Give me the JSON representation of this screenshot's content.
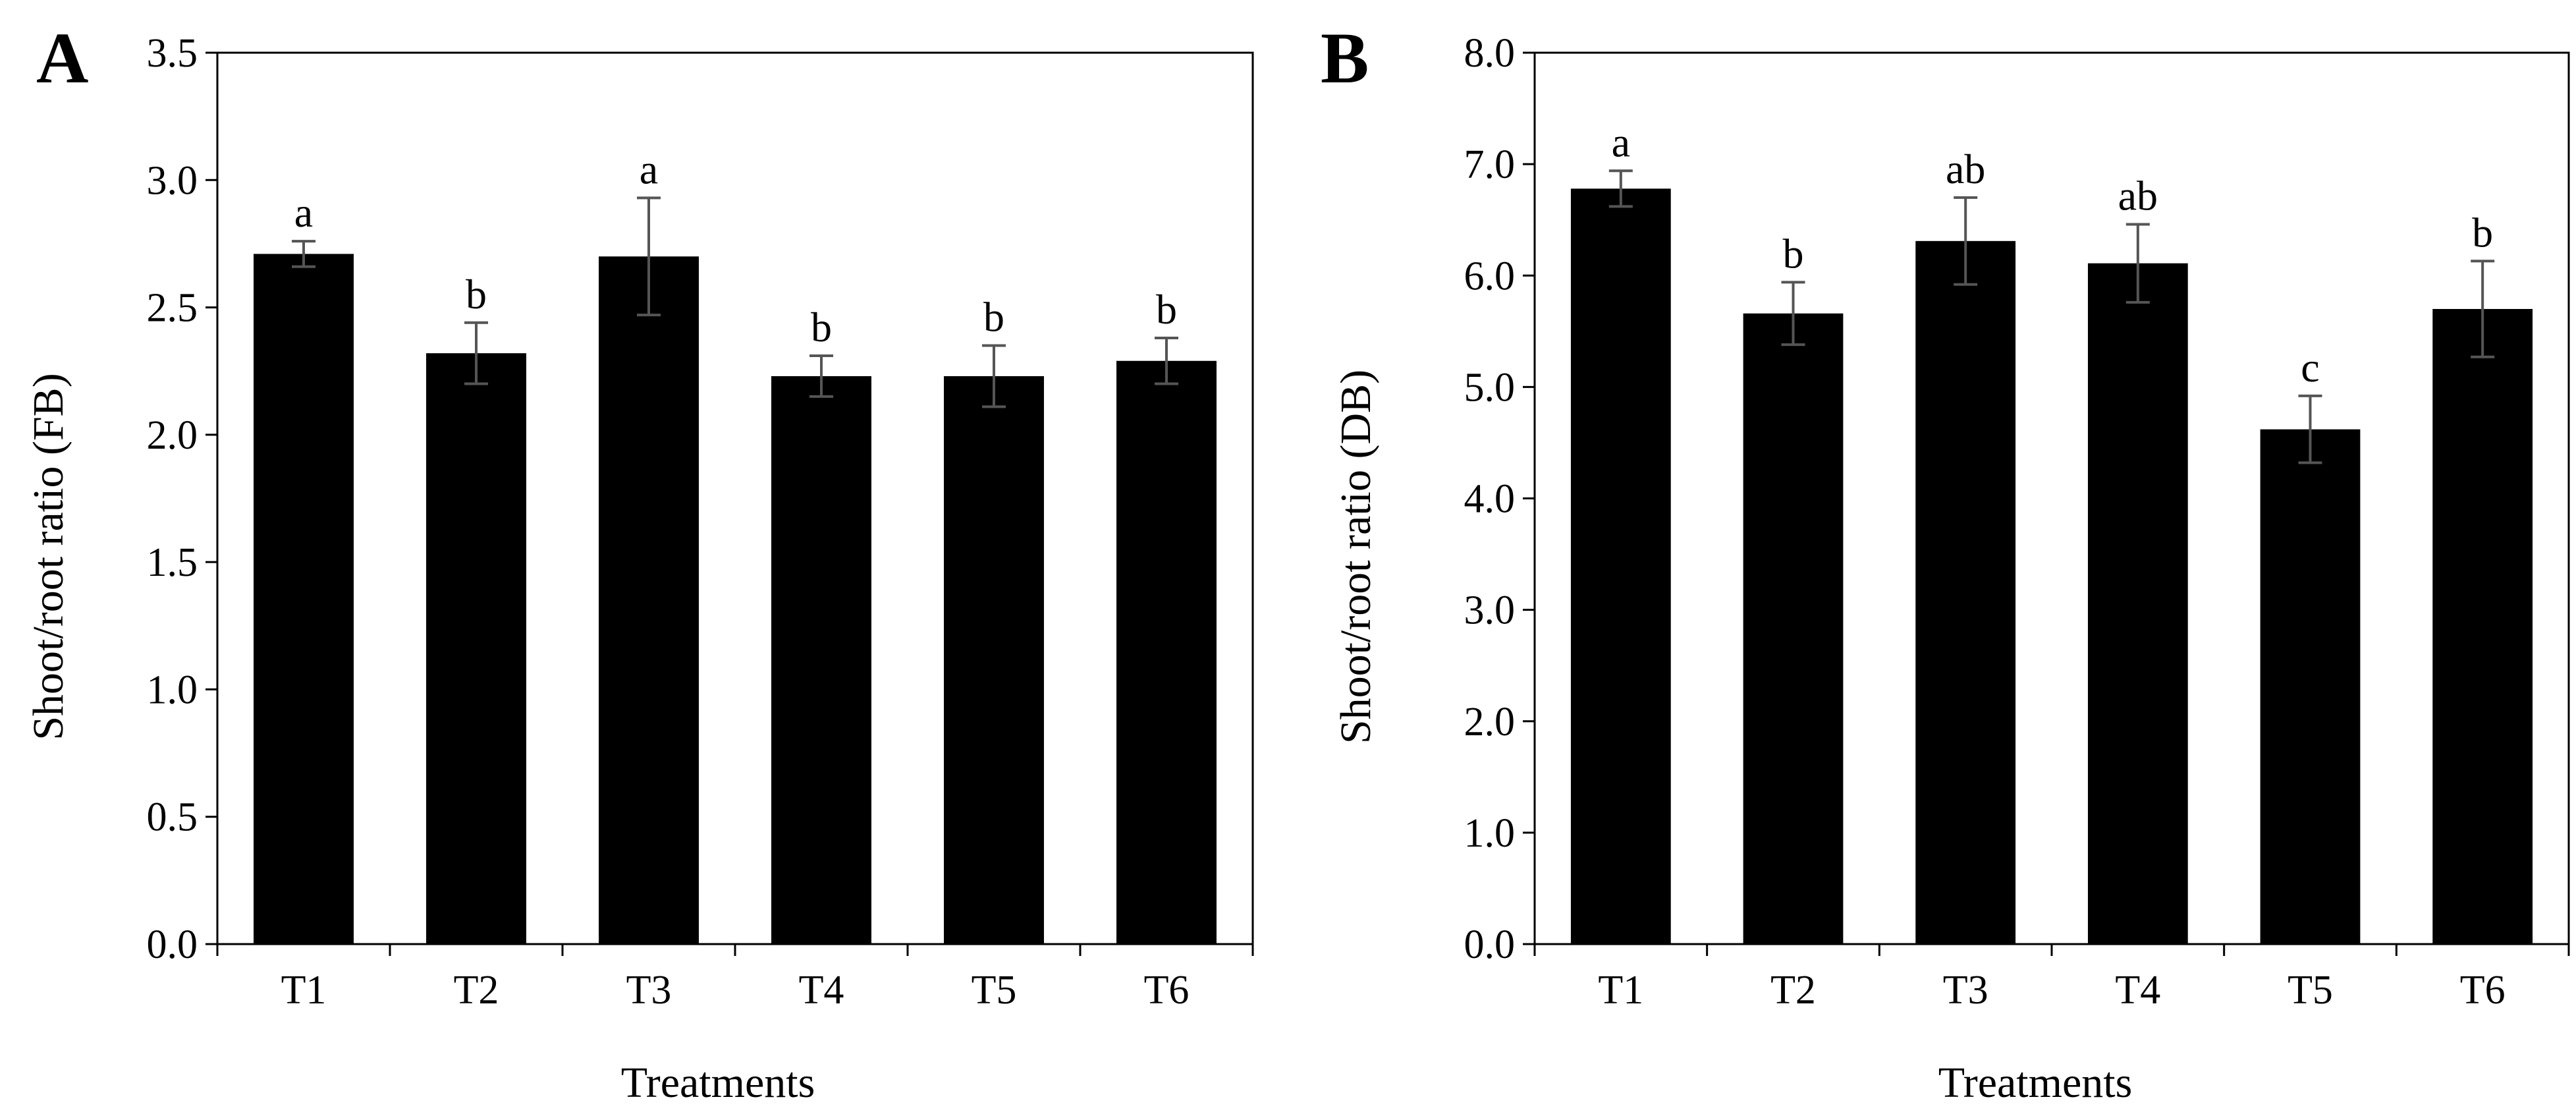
{
  "chart_data": [
    {
      "panel": "A",
      "type": "bar",
      "title": "",
      "xlabel": "Treatments",
      "ylabel": "Shoot/root ratio (FB)",
      "categories": [
        "T1",
        "T2",
        "T3",
        "T4",
        "T5",
        "T6"
      ],
      "values": [
        2.71,
        2.32,
        2.7,
        2.23,
        2.23,
        2.29
      ],
      "errors": [
        0.05,
        0.12,
        0.23,
        0.08,
        0.12,
        0.09
      ],
      "significance": [
        "a",
        "b",
        "a",
        "b",
        "b",
        "b"
      ],
      "ylim": [
        0,
        3.5
      ],
      "yticks": [
        0,
        0.5,
        1.0,
        1.5,
        2.0,
        2.5,
        3.0,
        3.5
      ],
      "ytick_labels": [
        "0.0",
        "0.5",
        "1.0",
        "1.5",
        "2.0",
        "2.5",
        "3.0",
        "3.5"
      ],
      "bar_color": "#000000",
      "error_color": "#555555",
      "grid": false,
      "legend": "none"
    },
    {
      "panel": "B",
      "type": "bar",
      "title": "",
      "xlabel": "Treatments",
      "ylabel": "Shoot/root ratio (DB)",
      "categories": [
        "T1",
        "T2",
        "T3",
        "T4",
        "T5",
        "T6"
      ],
      "values": [
        6.78,
        5.66,
        6.31,
        6.11,
        4.62,
        5.7
      ],
      "errors": [
        0.16,
        0.28,
        0.39,
        0.35,
        0.3,
        0.43
      ],
      "significance": [
        "a",
        "b",
        "ab",
        "ab",
        "c",
        "b"
      ],
      "ylim": [
        0,
        8.0
      ],
      "yticks": [
        0,
        1,
        2,
        3,
        4,
        5,
        6,
        7,
        8
      ],
      "ytick_labels": [
        "0.0",
        "1.0",
        "2.0",
        "3.0",
        "4.0",
        "5.0",
        "6.0",
        "7.0",
        "8.0"
      ],
      "bar_color": "#000000",
      "error_color": "#555555",
      "grid": false,
      "legend": "none"
    }
  ]
}
